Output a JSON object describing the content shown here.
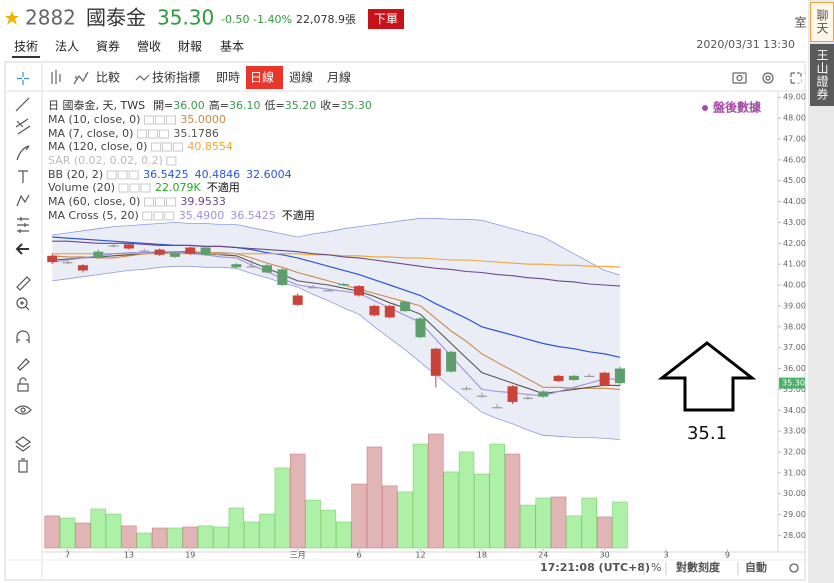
{
  "header": {
    "code": "2882",
    "name": "國泰金",
    "price": "35.30",
    "change": "-0.50",
    "change_pct": "-1.40%",
    "volume": "22,078.9張",
    "order_button": "下單"
  },
  "sidebar": [
    "聊天室",
    "王山證券下單"
  ],
  "tabs": {
    "items": [
      "技術",
      "法人",
      "資券",
      "營收",
      "財報",
      "基本"
    ],
    "active": 0
  },
  "datetime": "2020/03/31 13:30",
  "toolbar": {
    "items": [
      "比較",
      "技術指標",
      "即時",
      "日線",
      "週線",
      "月線"
    ],
    "active": 3
  },
  "chart_data": {
    "type": "candlestick",
    "legend": {
      "title": "日 國泰金, 天, TWS",
      "ohlc": [
        {
          "key": "開=",
          "value": "36.00"
        },
        {
          "key": "高=",
          "value": "36.10"
        },
        {
          "key": "低=",
          "value": "35.20"
        },
        {
          "key": "收=",
          "value": "35.30"
        }
      ],
      "sar": "SAR (0.02, 0.02, 0.2)",
      "volume": {
        "name": "Volume (20)",
        "values": [
          "22.079K",
          "不適用"
        ]
      }
    },
    "annotation": {
      "badge": "盤後數據",
      "text": "35.1"
    },
    "x_labels": [
      {
        "index": 1,
        "label": "7"
      },
      {
        "index": 5,
        "label": "13"
      },
      {
        "index": 9,
        "label": "19"
      },
      {
        "index": 16,
        "label": "三月"
      },
      {
        "index": 20,
        "label": "6"
      },
      {
        "index": 24,
        "label": "12"
      },
      {
        "index": 28,
        "label": "18"
      },
      {
        "index": 32,
        "label": "24"
      },
      {
        "index": 36,
        "label": "30"
      },
      {
        "index": 40,
        "label": "3"
      },
      {
        "index": 44,
        "label": "9"
      }
    ],
    "xlim": [
      -0.6,
      47.3
    ],
    "ylim": [
      27.4,
      49.25
    ],
    "yticks": [
      {
        "value": 49,
        "label": "49.00"
      },
      {
        "value": 48,
        "label": "48.00"
      },
      {
        "value": 47,
        "label": "47.00"
      },
      {
        "value": 46,
        "label": "46.00"
      },
      {
        "value": 45,
        "label": "45.00"
      },
      {
        "value": 44,
        "label": "44.00"
      },
      {
        "value": 43,
        "label": "43.00"
      },
      {
        "value": 42,
        "label": "42.00"
      },
      {
        "value": 41,
        "label": "41.00"
      },
      {
        "value": 40,
        "label": "40.00"
      },
      {
        "value": 39,
        "label": "39.00"
      },
      {
        "value": 38,
        "label": "38.00"
      },
      {
        "value": 37,
        "label": "37.00"
      },
      {
        "value": 36,
        "label": "36.00"
      },
      {
        "value": 35,
        "label": "35.00"
      },
      {
        "value": 34,
        "label": "34.00"
      },
      {
        "value": 33,
        "label": "33.00"
      },
      {
        "value": 32,
        "label": "32.00"
      },
      {
        "value": 31,
        "label": "31.00"
      },
      {
        "value": 30,
        "label": "30.00"
      },
      {
        "value": 29,
        "label": "29.00"
      },
      {
        "value": 28,
        "label": "28.00"
      }
    ],
    "last_price_tag": {
      "value": 35.3,
      "label": "35.30",
      "color": "#4caf6a"
    },
    "colors": {
      "up": "#c9433a",
      "down": "#5d9e6c",
      "doji": "#9a9a9a",
      "volume_up": "rgba(200,120,120,0.55)",
      "volume_down": "rgba(120,230,110,0.6)"
    },
    "open": [
      41.1,
      41.1,
      40.7,
      41.6,
      41.9,
      41.75,
      41.65,
      41.45,
      41.55,
      41.5,
      41.8,
      41.5,
      41.0,
      40.9,
      40.95,
      40.75,
      39.05,
      39.9,
      39.75,
      40.05,
      39.5,
      38.55,
      38.45,
      39.2,
      38.4,
      35.65,
      36.8,
      35.05,
      34.7,
      34.15,
      34.4,
      34.6,
      34.9,
      35.4,
      35.65,
      35.65,
      35.2,
      36.0
    ],
    "high": [
      41.5,
      41.2,
      41.0,
      41.7,
      42.0,
      42.0,
      41.75,
      41.75,
      41.6,
      41.85,
      41.85,
      41.55,
      41.05,
      41.2,
      41.0,
      40.8,
      39.6,
      40.0,
      39.8,
      40.1,
      40.0,
      39.05,
      39.05,
      39.25,
      38.45,
      37.0,
      36.85,
      35.15,
      34.85,
      34.3,
      35.2,
      34.7,
      34.95,
      35.7,
      35.7,
      35.75,
      35.85,
      36.1
    ],
    "low": [
      41.0,
      41.0,
      40.6,
      41.25,
      41.8,
      41.7,
      41.6,
      41.4,
      41.3,
      41.45,
      41.4,
      41.45,
      40.8,
      40.85,
      40.55,
      39.95,
      39.0,
      39.85,
      39.7,
      39.95,
      39.45,
      38.5,
      38.4,
      38.7,
      37.45,
      35.1,
      35.8,
      34.95,
      34.6,
      34.1,
      34.3,
      34.5,
      34.6,
      35.35,
      35.4,
      35.6,
      35.15,
      35.2
    ],
    "close": [
      41.4,
      41.1,
      40.95,
      41.3,
      41.9,
      41.95,
      41.65,
      41.7,
      41.35,
      41.8,
      41.45,
      41.5,
      40.85,
      40.9,
      40.6,
      40.0,
      39.5,
      39.9,
      39.75,
      40.0,
      39.95,
      39.0,
      39.0,
      38.75,
      37.5,
      36.95,
      35.85,
      35.05,
      34.7,
      34.15,
      35.15,
      34.6,
      34.65,
      35.65,
      35.45,
      35.65,
      35.8,
      35.3
    ],
    "volume": {
      "values": [
        15.4,
        14.4,
        12.0,
        18.7,
        16.3,
        10.6,
        7.2,
        9.6,
        9.6,
        10.1,
        10.6,
        10.1,
        19.2,
        12.5,
        16.3,
        38.4,
        45.1,
        23.0,
        18.2,
        12.5,
        30.7,
        48.5,
        29.8,
        26.9,
        49.9,
        54.7,
        36.5,
        46.1,
        35.5,
        49.9,
        45.1,
        20.6,
        24.0,
        24.5,
        15.4,
        24.0,
        14.9,
        22.079
      ],
      "vlim": [
        0,
        60
      ]
    },
    "band": {
      "name": "BB (20, 2)",
      "color": "#2a56d8",
      "edge_color": "#8e9be0",
      "fill": "rgba(130,140,200,0.16)",
      "legend_values": [
        "36.5425",
        "40.4846",
        "32.6004"
      ],
      "middle": [
        42.3,
        42.25,
        42.2,
        42.15,
        42.1,
        42.05,
        42.0,
        41.95,
        41.9,
        41.9,
        41.85,
        41.85,
        41.8,
        41.7,
        41.55,
        41.45,
        41.3,
        41.1,
        40.9,
        40.7,
        40.5,
        40.25,
        40.0,
        39.75,
        39.5,
        39.1,
        38.75,
        38.4,
        38.0,
        37.8,
        37.6,
        37.4,
        37.2,
        37.05,
        36.95,
        36.8,
        36.7,
        36.54
      ],
      "upper": [
        42.4,
        42.5,
        42.6,
        42.7,
        42.8,
        42.85,
        42.9,
        42.95,
        43.0,
        42.95,
        42.95,
        42.9,
        42.9,
        42.75,
        42.6,
        42.45,
        42.3,
        42.45,
        42.55,
        42.7,
        42.8,
        42.9,
        43.0,
        43.1,
        43.2,
        43.2,
        43.15,
        43.15,
        43.1,
        42.9,
        42.7,
        42.5,
        42.3,
        41.9,
        41.5,
        41.1,
        40.7,
        40.48
      ],
      "lower": [
        40.2,
        40.3,
        40.4,
        40.5,
        40.6,
        40.7,
        40.75,
        40.85,
        40.9,
        40.9,
        40.85,
        40.85,
        40.8,
        40.55,
        40.35,
        40.1,
        39.9,
        39.55,
        39.25,
        38.9,
        38.6,
        38.0,
        37.45,
        36.9,
        36.3,
        35.7,
        35.1,
        34.5,
        33.9,
        33.6,
        33.35,
        33.05,
        32.8,
        32.75,
        32.7,
        32.7,
        32.65,
        32.6
      ]
    },
    "series": [
      {
        "name": "MA (10, close, 0)",
        "color": "#c98a4a",
        "legend_values": [
          "35.0000"
        ],
        "values": [
          41.4,
          41.35,
          41.35,
          41.3,
          41.3,
          41.4,
          41.5,
          41.55,
          41.6,
          41.6,
          41.55,
          41.55,
          41.5,
          41.3,
          41.05,
          40.85,
          40.6,
          40.4,
          40.2,
          40.0,
          39.8,
          39.6,
          39.4,
          39.2,
          39.0,
          38.4,
          37.8,
          37.3,
          36.7,
          36.3,
          35.9,
          35.5,
          35.1,
          35.1,
          35.05,
          35.05,
          35.05,
          35.0
        ]
      },
      {
        "name": "MA (7, close, 0)",
        "color": "#555555",
        "legend_values": [
          "35.1786"
        ],
        "values": [
          41.2,
          41.25,
          41.3,
          41.35,
          41.4,
          41.45,
          41.5,
          41.55,
          41.6,
          41.55,
          41.5,
          41.45,
          41.4,
          41.1,
          40.8,
          40.5,
          40.2,
          40.1,
          40.0,
          39.85,
          39.7,
          39.45,
          39.15,
          38.9,
          38.6,
          37.9,
          37.2,
          36.5,
          35.8,
          35.55,
          35.3,
          35.05,
          34.8,
          34.9,
          35.0,
          35.1,
          35.2,
          35.18
        ]
      },
      {
        "name": "MA (120, close, 0)",
        "color": "#f2a531",
        "legend_values": [
          "40.8554"
        ],
        "values": [
          41.5,
          41.5,
          41.5,
          41.5,
          41.5,
          41.5,
          41.5,
          41.5,
          41.5,
          41.5,
          41.5,
          41.5,
          41.5,
          41.5,
          41.5,
          41.5,
          41.5,
          41.45,
          41.45,
          41.4,
          41.4,
          41.35,
          41.35,
          41.3,
          41.3,
          41.25,
          41.2,
          41.2,
          41.15,
          41.1,
          41.05,
          41.0,
          41.0,
          40.95,
          40.95,
          40.9,
          40.9,
          40.86
        ]
      },
      {
        "name": "MA (60, close, 0)",
        "color": "#6b4a8c",
        "legend_values": [
          "39.9533"
        ],
        "values": [
          42.1,
          42.1,
          42.05,
          42.0,
          42.0,
          42.0,
          41.95,
          41.9,
          41.9,
          41.9,
          41.85,
          41.85,
          41.8,
          41.75,
          41.7,
          41.65,
          41.6,
          41.5,
          41.45,
          41.35,
          41.3,
          41.2,
          41.1,
          41.0,
          40.9,
          40.8,
          40.75,
          40.65,
          40.6,
          40.5,
          40.45,
          40.35,
          40.3,
          40.2,
          40.15,
          40.05,
          40.0,
          39.95
        ]
      },
      {
        "name": "MA Cross (5, 20)",
        "color": "#9d90de",
        "legend_values": [
          "35.4900",
          "36.5425",
          "不適用"
        ],
        "values": [
          41.1,
          41.2,
          41.3,
          41.4,
          41.5,
          41.55,
          41.55,
          41.6,
          41.6,
          41.5,
          41.45,
          41.35,
          41.3,
          40.95,
          40.65,
          40.3,
          40.0,
          39.9,
          39.8,
          39.7,
          39.6,
          39.25,
          38.9,
          38.55,
          38.2,
          37.4,
          36.6,
          35.8,
          35.0,
          34.9,
          34.85,
          34.75,
          34.7,
          34.9,
          35.1,
          35.3,
          35.5,
          35.49
        ]
      }
    ]
  },
  "footer": {
    "time": "17:21:08 (UTC+8)",
    "percent": "%",
    "log": "對數刻度",
    "auto": "自動"
  }
}
